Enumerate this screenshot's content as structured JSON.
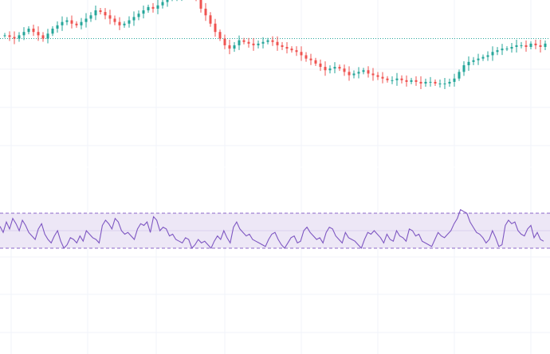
{
  "chart_data": [
    {
      "type": "candlestick",
      "title": "",
      "xlabel": "",
      "ylabel": "",
      "grid": true,
      "reference_line": {
        "style": "dotted",
        "color": "#26a69a"
      },
      "colors": {
        "up": "#26a69a",
        "down": "#ef5350"
      },
      "series": [
        {
          "close_path": [
            18,
            17,
            16,
            18,
            20,
            22,
            20,
            18,
            16,
            19,
            22,
            24,
            26,
            27,
            25,
            24,
            26,
            28,
            30,
            33,
            32,
            30,
            28,
            26,
            24,
            25,
            27,
            29,
            31,
            33,
            35,
            34,
            36,
            38,
            40,
            41,
            42,
            43,
            44,
            44,
            40,
            34,
            30,
            25,
            20,
            16,
            12,
            10,
            12,
            15,
            14,
            13,
            12,
            13,
            14,
            15,
            14,
            12,
            11,
            10,
            9,
            8,
            6,
            4,
            3,
            1,
            -1,
            -3,
            -2,
            -1,
            -2,
            -4,
            -6,
            -5,
            -4,
            -3,
            -5,
            -6,
            -7,
            -8,
            -9,
            -9,
            -8,
            -9,
            -10,
            -9,
            -10,
            -11,
            -10,
            -10,
            -11,
            -11,
            -11,
            -10,
            -8,
            -4,
            0,
            2,
            3,
            4,
            5,
            6,
            8,
            9,
            10,
            10,
            11,
            12,
            12,
            11,
            13,
            12,
            11,
            13
          ]
        }
      ]
    },
    {
      "type": "line",
      "title": "",
      "band": {
        "upper": 70,
        "lower": 30,
        "fill": "#ede7f6",
        "line_color": "#7e57c2"
      },
      "series": [
        {
          "color": "#7e57c2",
          "values": [
            55,
            48,
            60,
            52,
            64,
            58,
            50,
            62,
            56,
            48,
            44,
            40,
            52,
            58,
            46,
            40,
            36,
            44,
            50,
            38,
            30,
            34,
            42,
            40,
            36,
            44,
            38,
            50,
            46,
            42,
            40,
            36,
            56,
            62,
            58,
            52,
            64,
            60,
            50,
            46,
            48,
            44,
            40,
            52,
            58,
            56,
            60,
            48,
            66,
            62,
            50,
            54,
            52,
            44,
            46,
            40,
            38,
            36,
            42,
            40,
            30,
            34,
            40,
            36,
            38,
            34,
            30,
            38,
            44,
            40,
            50,
            42,
            36,
            54,
            60,
            52,
            48,
            44,
            46,
            40,
            38,
            36,
            34,
            32,
            40,
            46,
            48,
            40,
            34,
            30,
            36,
            42,
            44,
            36,
            38,
            50,
            54,
            48,
            44,
            40,
            42,
            36,
            48,
            54,
            52,
            44,
            40,
            36,
            48,
            42,
            40,
            38,
            34,
            30,
            40,
            48,
            46,
            50,
            46,
            42,
            36,
            46,
            40,
            38,
            50,
            44,
            42,
            38,
            52,
            50,
            44,
            46,
            38,
            36,
            34,
            32,
            40,
            48,
            44,
            42,
            46,
            50,
            58,
            64,
            74,
            72,
            70,
            60,
            54,
            48,
            46,
            42,
            36,
            40,
            50,
            42,
            32,
            34,
            56,
            62,
            58,
            60,
            50,
            46,
            44,
            52,
            56,
            42,
            48,
            40,
            38
          ]
        }
      ]
    }
  ]
}
